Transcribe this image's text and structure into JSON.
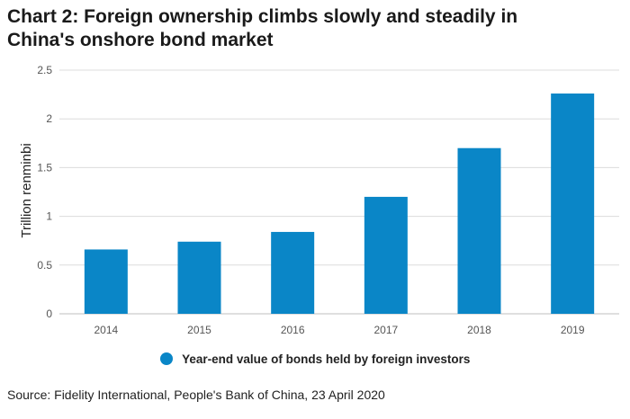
{
  "header": {
    "title_line1": "Chart 2: Foreign ownership climbs slowly and steadily in",
    "title_line2": "China's onshore bond market"
  },
  "source": "Source: Fidelity International, People's Bank of China, 23 April 2020",
  "chart_data": {
    "type": "bar",
    "title": "Chart 2: Foreign ownership climbs slowly and steadily in China's onshore bond market",
    "categories": [
      "2014",
      "2015",
      "2016",
      "2017",
      "2018",
      "2019"
    ],
    "series": [
      {
        "name": "Year-end value of bonds held by foreign investors",
        "values": [
          0.66,
          0.74,
          0.84,
          1.2,
          1.7,
          2.26
        ]
      }
    ],
    "xlabel": "",
    "ylabel": "Trillion renminbi",
    "ylim": [
      0,
      2.5
    ],
    "yticks": [
      "0",
      "0.5",
      "1",
      "1.5",
      "2",
      "2.5"
    ],
    "grid": true,
    "legend": "bottom",
    "bar_color": "#0a86c7"
  }
}
